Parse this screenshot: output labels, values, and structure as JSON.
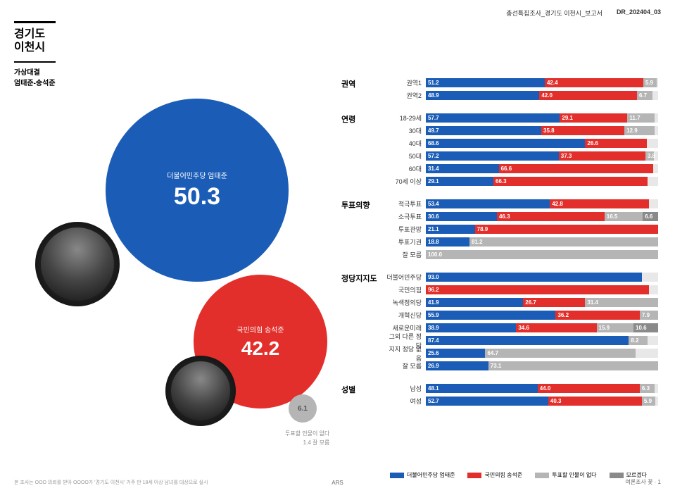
{
  "doc": {
    "header_text": "총선특집조사_경기도 이천시_보고서",
    "doc_id": "DR_202404_03",
    "footer_left": "본 조사는 OOO 의뢰를 받아 OOOO가 '경기도 이천시' 거주 만 18세 이상 남녀를 대상으로 실시",
    "footer_mid": "ARS",
    "footer_right": "여론조사 꽃 · 1"
  },
  "title": {
    "line1": "경기도",
    "line2": "이천시",
    "sub1": "가상대결",
    "sub2": "엄태준-송석준"
  },
  "colors": {
    "blue": "#1b5db6",
    "red": "#e22f2b",
    "gray": "#b5b5b5",
    "darkgray": "#8a8a8a",
    "track": "#e8e8e8"
  },
  "bubbles": {
    "blue": {
      "party": "더불어민주당 엄태준",
      "pct": "50.3"
    },
    "red": {
      "party": "국민의힘 송석준",
      "pct": "42.2"
    },
    "gray": {
      "pct": "6.1"
    },
    "note1": "투표할 인물이 없다",
    "note2": "1.4 잘 모름"
  },
  "legend": [
    {
      "label": "더불어민주당 엄태준",
      "color": "#1b5db6"
    },
    {
      "label": "국민의힘 송석준",
      "color": "#e22f2b"
    },
    {
      "label": "투표할 인물이 없다",
      "color": "#b5b5b5"
    },
    {
      "label": "모르겠다",
      "color": "#8a8a8a"
    }
  ],
  "groups": [
    {
      "label": "권역",
      "rows": [
        {
          "label": "권역1",
          "segs": [
            {
              "v": 51.2,
              "c": "blue"
            },
            {
              "v": 42.4,
              "c": "red"
            },
            {
              "v": 5.9,
              "c": "gray"
            }
          ]
        },
        {
          "label": "권역2",
          "segs": [
            {
              "v": 48.9,
              "c": "blue"
            },
            {
              "v": 42.0,
              "c": "red"
            },
            {
              "v": 6.7,
              "c": "gray"
            }
          ]
        }
      ]
    },
    {
      "label": "연령",
      "rows": [
        {
          "label": "18-29세",
          "segs": [
            {
              "v": 57.7,
              "c": "blue"
            },
            {
              "v": 29.1,
              "c": "red"
            },
            {
              "v": 11.7,
              "c": "gray"
            }
          ]
        },
        {
          "label": "30대",
          "segs": [
            {
              "v": 49.7,
              "c": "blue"
            },
            {
              "v": 35.8,
              "c": "red"
            },
            {
              "v": 12.9,
              "c": "gray"
            }
          ]
        },
        {
          "label": "40대",
          "segs": [
            {
              "v": 68.6,
              "c": "blue"
            },
            {
              "v": 26.6,
              "c": "red"
            }
          ]
        },
        {
          "label": "50대",
          "segs": [
            {
              "v": 57.2,
              "c": "blue"
            },
            {
              "v": 37.3,
              "c": "red"
            },
            {
              "v": 3.8,
              "c": "gray"
            }
          ]
        },
        {
          "label": "60대",
          "segs": [
            {
              "v": 31.4,
              "c": "blue"
            },
            {
              "v": 66.6,
              "c": "red"
            }
          ]
        },
        {
          "label": "70세 이상",
          "segs": [
            {
              "v": 29.1,
              "c": "blue"
            },
            {
              "v": 66.3,
              "c": "red"
            }
          ]
        }
      ]
    },
    {
      "label": "투표의향",
      "rows": [
        {
          "label": "적극투표",
          "segs": [
            {
              "v": 53.4,
              "c": "blue"
            },
            {
              "v": 42.8,
              "c": "red"
            }
          ]
        },
        {
          "label": "소극투표",
          "segs": [
            {
              "v": 30.6,
              "c": "blue"
            },
            {
              "v": 46.3,
              "c": "red"
            },
            {
              "v": 16.5,
              "c": "gray"
            },
            {
              "v": 6.6,
              "c": "darkgray"
            }
          ]
        },
        {
          "label": "투표관망",
          "segs": [
            {
              "v": 21.1,
              "c": "blue"
            },
            {
              "v": 78.9,
              "c": "red"
            }
          ]
        },
        {
          "label": "투표기권",
          "segs": [
            {
              "v": 18.8,
              "c": "blue"
            },
            {
              "v": 81.2,
              "c": "gray"
            }
          ]
        },
        {
          "label": "잘 모름",
          "segs": [
            {
              "v": 100.0,
              "c": "gray"
            }
          ]
        }
      ]
    },
    {
      "label": "정당지지도",
      "rows": [
        {
          "label": "더불어민주당",
          "segs": [
            {
              "v": 93.0,
              "c": "blue"
            }
          ]
        },
        {
          "label": "국민의힘",
          "segs": [
            {
              "v": 96.2,
              "c": "red"
            }
          ]
        },
        {
          "label": "녹색정의당",
          "segs": [
            {
              "v": 41.9,
              "c": "blue"
            },
            {
              "v": 26.7,
              "c": "red"
            },
            {
              "v": 31.4,
              "c": "gray"
            }
          ]
        },
        {
          "label": "개혁신당",
          "segs": [
            {
              "v": 55.9,
              "c": "blue"
            },
            {
              "v": 36.2,
              "c": "red"
            },
            {
              "v": 7.9,
              "c": "gray"
            }
          ]
        },
        {
          "label": "새로운미래",
          "segs": [
            {
              "v": 38.9,
              "c": "blue"
            },
            {
              "v": 34.6,
              "c": "red"
            },
            {
              "v": 15.9,
              "c": "gray"
            },
            {
              "v": 10.6,
              "c": "darkgray"
            }
          ]
        },
        {
          "label": "그외 다른 정당",
          "segs": [
            {
              "v": 87.4,
              "c": "blue"
            },
            {
              "v": 8.2,
              "c": "gray"
            }
          ]
        },
        {
          "label": "지지 정당 없음",
          "segs": [
            {
              "v": 25.6,
              "c": "blue"
            },
            {
              "v": 64.7,
              "c": "gray"
            }
          ]
        },
        {
          "label": "잘 모름",
          "segs": [
            {
              "v": 26.9,
              "c": "blue"
            },
            {
              "v": 73.1,
              "c": "gray"
            }
          ]
        }
      ]
    },
    {
      "label": "성별",
      "rows": [
        {
          "label": "남성",
          "segs": [
            {
              "v": 48.1,
              "c": "blue"
            },
            {
              "v": 44.0,
              "c": "red"
            },
            {
              "v": 6.3,
              "c": "gray"
            }
          ]
        },
        {
          "label": "여성",
          "segs": [
            {
              "v": 52.7,
              "c": "blue"
            },
            {
              "v": 40.3,
              "c": "red"
            },
            {
              "v": 5.9,
              "c": "gray"
            }
          ]
        }
      ]
    }
  ]
}
